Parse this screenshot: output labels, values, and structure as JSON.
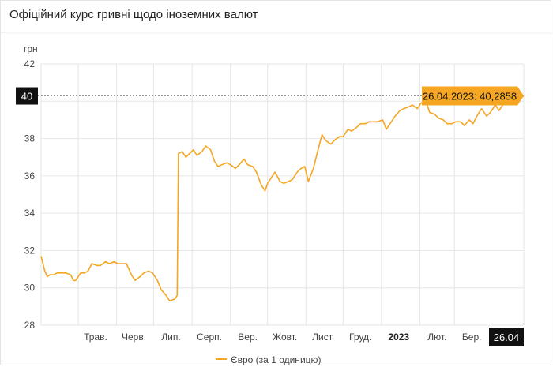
{
  "title": "Офіційний курс гривні щодо іноземних валют",
  "colors": {
    "line": "#f5a623",
    "tooltip_bg": "#f5a623",
    "tooltip_text": "#111111",
    "marker_bg": "#111111",
    "marker_text": "#ffffff",
    "grid": "#e6e6e6"
  },
  "chart_data": {
    "type": "line",
    "ylabel": "грн",
    "ylim": [
      28,
      42
    ],
    "yticks": [
      28,
      30,
      32,
      34,
      36,
      38,
      40,
      42
    ],
    "x_tick_labels": [
      "Трав.",
      "Черв.",
      "Лип.",
      "Серп.",
      "Вер.",
      "Жовт.",
      "Лист.",
      "Груд.",
      "2023",
      "Лют.",
      "Бер."
    ],
    "x_start": "2022-04-01",
    "x_end": "2023-04-26",
    "x_tick_dates": [
      "2022-05-01",
      "2022-06-01",
      "2022-07-01",
      "2022-08-01",
      "2022-09-01",
      "2022-10-01",
      "2022-11-01",
      "2022-12-01",
      "2023-01-01",
      "2023-02-01",
      "2023-03-01"
    ],
    "grid": true,
    "legend_position": "bottom-center",
    "series": [
      {
        "name": "Євро (за 1 одиницю)",
        "points": [
          [
            "2022-04-01",
            31.7
          ],
          [
            "2022-04-04",
            30.9
          ],
          [
            "2022-04-06",
            30.6
          ],
          [
            "2022-04-08",
            30.7
          ],
          [
            "2022-04-11",
            30.7
          ],
          [
            "2022-04-14",
            30.8
          ],
          [
            "2022-04-18",
            30.8
          ],
          [
            "2022-04-21",
            30.8
          ],
          [
            "2022-04-25",
            30.7
          ],
          [
            "2022-04-27",
            30.4
          ],
          [
            "2022-04-29",
            30.4
          ],
          [
            "2022-05-03",
            30.8
          ],
          [
            "2022-05-06",
            30.8
          ],
          [
            "2022-05-09",
            30.9
          ],
          [
            "2022-05-12",
            31.3
          ],
          [
            "2022-05-16",
            31.2
          ],
          [
            "2022-05-19",
            31.2
          ],
          [
            "2022-05-23",
            31.4
          ],
          [
            "2022-05-26",
            31.3
          ],
          [
            "2022-05-30",
            31.4
          ],
          [
            "2022-06-02",
            31.3
          ],
          [
            "2022-06-06",
            31.3
          ],
          [
            "2022-06-09",
            31.3
          ],
          [
            "2022-06-13",
            30.7
          ],
          [
            "2022-06-16",
            30.4
          ],
          [
            "2022-06-20",
            30.6
          ],
          [
            "2022-06-23",
            30.8
          ],
          [
            "2022-06-27",
            30.9
          ],
          [
            "2022-06-30",
            30.8
          ],
          [
            "2022-07-04",
            30.4
          ],
          [
            "2022-07-07",
            29.9
          ],
          [
            "2022-07-11",
            29.6
          ],
          [
            "2022-07-14",
            29.3
          ],
          [
            "2022-07-18",
            29.4
          ],
          [
            "2022-07-20",
            29.6
          ],
          [
            "2022-07-21",
            37.2
          ],
          [
            "2022-07-24",
            37.3
          ],
          [
            "2022-07-27",
            37.0
          ],
          [
            "2022-07-30",
            37.2
          ],
          [
            "2022-08-02",
            37.4
          ],
          [
            "2022-08-05",
            37.1
          ],
          [
            "2022-08-09",
            37.3
          ],
          [
            "2022-08-12",
            37.6
          ],
          [
            "2022-08-16",
            37.4
          ],
          [
            "2022-08-19",
            36.8
          ],
          [
            "2022-08-22",
            36.5
          ],
          [
            "2022-08-25",
            36.6
          ],
          [
            "2022-08-29",
            36.7
          ],
          [
            "2022-09-01",
            36.6
          ],
          [
            "2022-09-05",
            36.4
          ],
          [
            "2022-09-08",
            36.6
          ],
          [
            "2022-09-12",
            36.9
          ],
          [
            "2022-09-15",
            36.6
          ],
          [
            "2022-09-19",
            36.5
          ],
          [
            "2022-09-22",
            36.2
          ],
          [
            "2022-09-26",
            35.5
          ],
          [
            "2022-09-29",
            35.2
          ],
          [
            "2022-10-01",
            35.6
          ],
          [
            "2022-10-04",
            35.9
          ],
          [
            "2022-10-07",
            36.2
          ],
          [
            "2022-10-11",
            35.7
          ],
          [
            "2022-10-14",
            35.6
          ],
          [
            "2022-10-18",
            35.7
          ],
          [
            "2022-10-21",
            35.8
          ],
          [
            "2022-10-25",
            36.2
          ],
          [
            "2022-10-28",
            36.4
          ],
          [
            "2022-10-31",
            36.5
          ],
          [
            "2022-11-03",
            35.7
          ],
          [
            "2022-11-07",
            36.4
          ],
          [
            "2022-11-10",
            37.2
          ],
          [
            "2022-11-14",
            38.2
          ],
          [
            "2022-11-17",
            37.9
          ],
          [
            "2022-11-21",
            37.7
          ],
          [
            "2022-11-24",
            37.9
          ],
          [
            "2022-11-28",
            38.1
          ],
          [
            "2022-12-01",
            38.1
          ],
          [
            "2022-12-05",
            38.5
          ],
          [
            "2022-12-08",
            38.4
          ],
          [
            "2022-12-12",
            38.6
          ],
          [
            "2022-12-15",
            38.8
          ],
          [
            "2022-12-19",
            38.8
          ],
          [
            "2022-12-22",
            38.9
          ],
          [
            "2022-12-26",
            38.9
          ],
          [
            "2022-12-29",
            38.9
          ],
          [
            "2023-01-02",
            39.0
          ],
          [
            "2023-01-05",
            38.5
          ],
          [
            "2023-01-09",
            38.9
          ],
          [
            "2023-01-12",
            39.2
          ],
          [
            "2023-01-16",
            39.5
          ],
          [
            "2023-01-19",
            39.6
          ],
          [
            "2023-01-23",
            39.7
          ],
          [
            "2023-01-26",
            39.8
          ],
          [
            "2023-01-30",
            39.6
          ],
          [
            "2023-02-02",
            39.9
          ],
          [
            "2023-02-06",
            40.0
          ],
          [
            "2023-02-09",
            39.4
          ],
          [
            "2023-02-13",
            39.3
          ],
          [
            "2023-02-16",
            39.1
          ],
          [
            "2023-02-20",
            39.0
          ],
          [
            "2023-02-23",
            38.8
          ],
          [
            "2023-02-27",
            38.8
          ],
          [
            "2023-03-02",
            38.9
          ],
          [
            "2023-03-06",
            38.9
          ],
          [
            "2023-03-09",
            38.7
          ],
          [
            "2023-03-13",
            39.0
          ],
          [
            "2023-03-16",
            38.8
          ],
          [
            "2023-03-20",
            39.3
          ],
          [
            "2023-03-23",
            39.6
          ],
          [
            "2023-03-27",
            39.2
          ],
          [
            "2023-03-30",
            39.4
          ],
          [
            "2023-04-03",
            39.8
          ],
          [
            "2023-04-06",
            39.5
          ],
          [
            "2023-04-10",
            39.9
          ],
          [
            "2023-04-13",
            40.3
          ],
          [
            "2023-04-17",
            40.1
          ],
          [
            "2023-04-20",
            40.2
          ],
          [
            "2023-04-24",
            40.2
          ],
          [
            "2023-04-26",
            40.2858
          ]
        ]
      }
    ],
    "tooltip": {
      "text": "26.04.2023: 40,2858",
      "date": "2023-04-26",
      "value": 40.2858
    },
    "crosshair": {
      "y_label": "40",
      "y_value": 40.2858,
      "x_label": "26.04",
      "x_date": "2023-04-26"
    }
  }
}
